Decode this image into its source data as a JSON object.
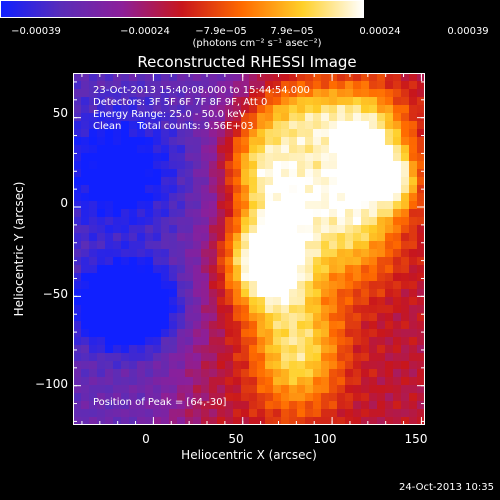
{
  "chart_data": {
    "type": "heatmap",
    "title": "Reconstructed RHESSI Image",
    "xlabel": "Heliocentric X (arcsec)",
    "ylabel": "Heliocentric Y (arcsec)",
    "xlim": [
      -45,
      152
    ],
    "ylim": [
      -122,
      75
    ],
    "x_ticks": [
      "0",
      "50",
      "100",
      "150"
    ],
    "y_ticks": [
      "50",
      "0",
      "−50",
      "−100"
    ],
    "colorbar": {
      "tick_labels": [
        "−0.00039",
        "−0.00024",
        "−7.9e−05",
        "7.9e−05",
        "0.00024",
        "0.00039"
      ],
      "unit": "(photons cm⁻² s⁻¹ asec⁻²)",
      "range": [
        -0.00039,
        0.00039
      ],
      "colors": [
        "#1020ff",
        "#5a2db8",
        "#8c1f9a",
        "#c8161c",
        "#ff6b00",
        "#ffd02a",
        "#ffffff"
      ]
    },
    "annotations": [
      "23-Oct-2013 15:40:08.000 to 15:44:54.000",
      "Detectors: 3F 5F 6F 7F 8F 9F, Att 0",
      "Energy Range: 25.0 - 50.0 keV",
      "Clean     Total counts: 9.56E+03"
    ],
    "peak_label": "Position of Peak = [64,-30]",
    "peak": {
      "x": 64,
      "y": -30
    },
    "sources": [
      {
        "x": 64,
        "y": -30,
        "sx": 16,
        "sy": 18,
        "amp": 1.0
      },
      {
        "x": 75,
        "y": 10,
        "sx": 18,
        "sy": 20,
        "amp": 0.55
      },
      {
        "x": 120,
        "y": 30,
        "sx": 16,
        "sy": 22,
        "amp": 0.7
      },
      {
        "x": 135,
        "y": 15,
        "sx": 8,
        "sy": 10,
        "amp": 0.5
      },
      {
        "x": 80,
        "y": -80,
        "sx": 18,
        "sy": 25,
        "amp": 0.6
      },
      {
        "x": 85,
        "y": 50,
        "sx": 25,
        "sy": 15,
        "amp": 0.5
      },
      {
        "x": 110,
        "y": -10,
        "sx": 20,
        "sy": 25,
        "amp": 0.5
      },
      {
        "x": 55,
        "y": 25,
        "sx": 15,
        "sy": 15,
        "amp": 0.35
      }
    ],
    "negative_sources": [
      {
        "x": -15,
        "y": -55,
        "sx": 18,
        "sy": 15,
        "amp": 0.9
      },
      {
        "x": -20,
        "y": 20,
        "sx": 25,
        "sy": 25,
        "amp": 0.4
      }
    ]
  },
  "footer": {
    "timestamp": "24-Oct-2013 10:35"
  }
}
